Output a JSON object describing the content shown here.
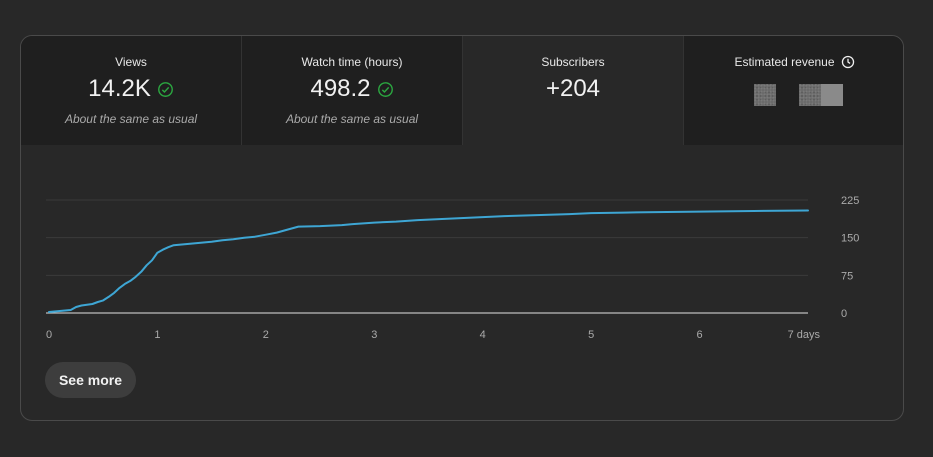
{
  "metrics": [
    {
      "title": "Views",
      "value": "14.2K",
      "sub": "About the same as usual",
      "status_icon": "check-circle-icon",
      "active": false
    },
    {
      "title": "Watch time (hours)",
      "value": "498.2",
      "sub": "About the same as usual",
      "status_icon": "check-circle-icon",
      "active": false
    },
    {
      "title": "Subscribers",
      "value": "+204",
      "sub": "",
      "active": true
    },
    {
      "title": "Estimated revenue",
      "value": "",
      "sub": "",
      "title_icon": "clock-icon",
      "value_redacted": true,
      "active": false
    }
  ],
  "colors": {
    "accent_line": "#3ea6d4",
    "check_green": "#2ba640",
    "grid": "#3a3a3a",
    "baseline": "#bdbdbd"
  },
  "see_more_label": "See more",
  "chart_data": {
    "type": "line",
    "title": "",
    "xlabel": "",
    "ylabel": "",
    "x_ticks": [
      "0",
      "1",
      "2",
      "3",
      "4",
      "5",
      "6",
      "7 days"
    ],
    "y_ticks": [
      "0",
      "75",
      "150",
      "225"
    ],
    "xlim": [
      0,
      7
    ],
    "ylim": [
      0,
      225
    ],
    "grid": true,
    "y_axis_side": "right",
    "series": [
      {
        "x": [
          0,
          0.1,
          0.2,
          0.25,
          0.3,
          0.4,
          0.45,
          0.5,
          0.55,
          0.6,
          0.65,
          0.7,
          0.75,
          0.8,
          0.85,
          0.9,
          0.95,
          1.0,
          1.05,
          1.1,
          1.15,
          1.2,
          1.3,
          1.4,
          1.5,
          1.6,
          1.7,
          1.8,
          1.9,
          2.0,
          2.1,
          2.2,
          2.3,
          2.5,
          2.7,
          2.8,
          3.0,
          3.2,
          3.4,
          3.6,
          3.8,
          4.0,
          4.2,
          4.5,
          4.8,
          5.0,
          5.3,
          5.6,
          6.0,
          6.5,
          7.0
        ],
        "y": [
          2,
          4,
          6,
          12,
          15,
          18,
          22,
          25,
          32,
          40,
          50,
          58,
          64,
          72,
          82,
          95,
          105,
          120,
          126,
          131,
          135,
          136,
          138,
          140,
          142,
          145,
          147,
          150,
          152,
          156,
          160,
          166,
          172,
          173,
          175,
          177,
          180,
          182,
          185,
          187,
          189,
          191,
          193,
          195,
          197,
          199,
          200,
          201,
          202,
          203,
          204
        ]
      }
    ]
  }
}
